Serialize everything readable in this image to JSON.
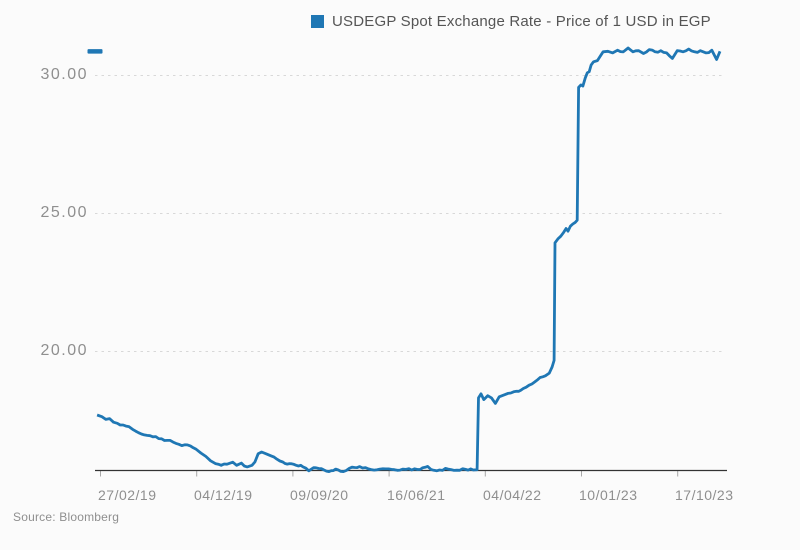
{
  "legend": {
    "label": "USDEGP Spot Exchange Rate - Price of 1 USD in EGP"
  },
  "source": {
    "label": "Source: Bloomberg"
  },
  "colors": {
    "line": "#1f77b4",
    "background": "#fbfbfb",
    "grid": "#d8d8d8",
    "axis": "#333333",
    "tick": "#a8a8a8",
    "title_text": "#555555",
    "axis_text": "#8f8f8f"
  },
  "chart_data": {
    "type": "line",
    "title": "USDEGP Spot Exchange Rate - Price of 1 USD in EGP",
    "legend_position": "top",
    "grid": "horizontal-dashed",
    "x_tick_labels": [
      "27/02/19",
      "04/12/19",
      "09/09/20",
      "16/06/21",
      "04/04/22",
      "10/01/23",
      "17/10/23"
    ],
    "y_tick_labels": [
      "30.00",
      "25.00",
      "20.00"
    ],
    "y_ticks": [
      30,
      25,
      20
    ],
    "y_visible_range": [
      15.7,
      31.2
    ],
    "last_value": 30.86,
    "x_unit_note": "points use t measured in x-axis tick intervals: t=0 at 27/02/19, t=1 at 04/12/19, t=2 at 09/09/20, t=3 at 16/06/21, t=4 at 04/04/22, t=5 at 10/01/23, t=6 at 17/10/23 (one interval is about 280 days)",
    "series": [
      {
        "name": "USDEGP",
        "points": [
          [
            -0.03,
            17.68
          ],
          [
            0.02,
            17.62
          ],
          [
            0.06,
            17.52
          ],
          [
            0.1,
            17.55
          ],
          [
            0.14,
            17.42
          ],
          [
            0.18,
            17.38
          ],
          [
            0.24,
            17.32
          ],
          [
            0.3,
            17.26
          ],
          [
            0.34,
            17.16
          ],
          [
            0.4,
            17.04
          ],
          [
            0.46,
            16.96
          ],
          [
            0.52,
            16.93
          ],
          [
            0.58,
            16.9
          ],
          [
            0.64,
            16.82
          ],
          [
            0.7,
            16.76
          ],
          [
            0.76,
            16.7
          ],
          [
            0.82,
            16.62
          ],
          [
            0.88,
            16.6
          ],
          [
            0.94,
            16.56
          ],
          [
            1.0,
            16.44
          ],
          [
            1.05,
            16.3
          ],
          [
            1.1,
            16.18
          ],
          [
            1.15,
            16.02
          ],
          [
            1.2,
            15.92
          ],
          [
            1.26,
            15.86
          ],
          [
            1.32,
            15.9
          ],
          [
            1.38,
            15.97
          ],
          [
            1.42,
            15.86
          ],
          [
            1.47,
            15.94
          ],
          [
            1.53,
            15.8
          ],
          [
            1.58,
            15.86
          ],
          [
            1.61,
            15.98
          ],
          [
            1.645,
            16.28
          ],
          [
            1.68,
            16.34
          ],
          [
            1.73,
            16.27
          ],
          [
            1.78,
            16.2
          ],
          [
            1.84,
            16.08
          ],
          [
            1.9,
            15.98
          ],
          [
            1.97,
            15.92
          ],
          [
            2.04,
            15.86
          ],
          [
            2.11,
            15.8
          ],
          [
            2.17,
            15.66
          ],
          [
            2.22,
            15.77
          ],
          [
            2.3,
            15.74
          ],
          [
            2.38,
            15.63
          ],
          [
            2.45,
            15.72
          ],
          [
            2.53,
            15.63
          ],
          [
            2.62,
            15.79
          ],
          [
            2.7,
            15.81
          ],
          [
            2.79,
            15.73
          ],
          [
            2.88,
            15.7
          ],
          [
            2.97,
            15.73
          ],
          [
            3.06,
            15.7
          ],
          [
            3.15,
            15.72
          ],
          [
            3.24,
            15.69
          ],
          [
            3.33,
            15.71
          ],
          [
            3.405,
            15.82
          ],
          [
            3.44,
            15.71
          ],
          [
            3.53,
            15.69
          ],
          [
            3.62,
            15.72
          ],
          [
            3.71,
            15.68
          ],
          [
            3.8,
            15.71
          ],
          [
            3.88,
            15.69
          ],
          [
            3.92,
            15.7
          ],
          [
            3.935,
            18.3
          ],
          [
            3.96,
            18.45
          ],
          [
            3.99,
            18.24
          ],
          [
            4.03,
            18.38
          ],
          [
            4.07,
            18.3
          ],
          [
            4.11,
            18.1
          ],
          [
            4.15,
            18.34
          ],
          [
            4.21,
            18.42
          ],
          [
            4.27,
            18.48
          ],
          [
            4.33,
            18.54
          ],
          [
            4.4,
            18.64
          ],
          [
            4.46,
            18.76
          ],
          [
            4.52,
            18.88
          ],
          [
            4.575,
            19.04
          ],
          [
            4.63,
            19.1
          ],
          [
            4.67,
            19.2
          ],
          [
            4.7,
            19.42
          ],
          [
            4.72,
            19.66
          ],
          [
            4.73,
            23.92
          ],
          [
            4.76,
            24.06
          ],
          [
            4.79,
            24.16
          ],
          [
            4.82,
            24.3
          ],
          [
            4.845,
            24.44
          ],
          [
            4.865,
            24.34
          ],
          [
            4.89,
            24.52
          ],
          [
            4.915,
            24.6
          ],
          [
            4.94,
            24.66
          ],
          [
            4.96,
            24.74
          ],
          [
            4.975,
            29.55
          ],
          [
            5.0,
            29.64
          ],
          [
            5.02,
            29.6
          ],
          [
            5.045,
            29.9
          ],
          [
            5.065,
            30.08
          ],
          [
            5.085,
            30.12
          ],
          [
            5.105,
            30.36
          ],
          [
            5.13,
            30.48
          ],
          [
            5.17,
            30.52
          ],
          [
            5.2,
            30.68
          ],
          [
            5.23,
            30.84
          ],
          [
            5.28,
            30.86
          ],
          [
            5.33,
            30.8
          ],
          [
            5.38,
            30.9
          ],
          [
            5.44,
            30.84
          ],
          [
            5.49,
            30.98
          ],
          [
            5.54,
            30.84
          ],
          [
            5.6,
            30.88
          ],
          [
            5.65,
            30.78
          ],
          [
            5.71,
            30.92
          ],
          [
            5.77,
            30.84
          ],
          [
            5.83,
            30.88
          ],
          [
            5.89,
            30.8
          ],
          [
            5.95,
            30.6
          ],
          [
            6.0,
            30.88
          ],
          [
            6.06,
            30.84
          ],
          [
            6.12,
            30.94
          ],
          [
            6.18,
            30.84
          ],
          [
            6.24,
            30.88
          ],
          [
            6.3,
            30.8
          ],
          [
            6.36,
            30.9
          ],
          [
            6.41,
            30.56
          ],
          [
            6.445,
            30.86
          ]
        ]
      }
    ]
  }
}
